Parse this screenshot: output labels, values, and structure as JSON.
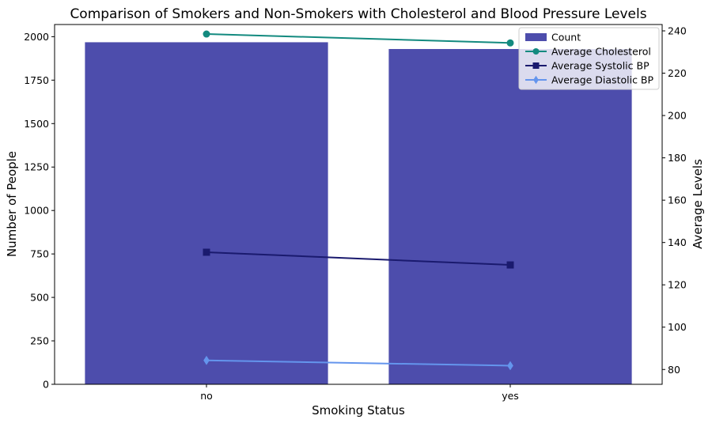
{
  "chart_data": {
    "type": "bar",
    "title": "Comparison of Smokers and Non-Smokers with Cholesterol and Blood Pressure Levels",
    "xlabel": "Smoking Status",
    "ylabel_left": "Number of People",
    "ylabel_right": "Average Levels",
    "categories": [
      "no",
      "yes"
    ],
    "ylim_left": [
      0,
      2070
    ],
    "ylim_right": [
      73,
      243
    ],
    "yticks_left": [
      0,
      250,
      500,
      750,
      1000,
      1250,
      1500,
      1750,
      2000
    ],
    "yticks_right": [
      80,
      100,
      120,
      140,
      160,
      180,
      200,
      220,
      240
    ],
    "legend_position": "top-right",
    "bar_series": {
      "name": "Count",
      "values": [
        1968,
        1929
      ],
      "color": "#2e2e9e"
    },
    "line_series": [
      {
        "name": "Average Cholesterol",
        "values": [
          238.5,
          234.3
        ],
        "color": "#138a7f",
        "marker": "circle"
      },
      {
        "name": "Average Systolic BP",
        "values": [
          135.4,
          129.4
        ],
        "color": "#1a1a6e",
        "marker": "square"
      },
      {
        "name": "Average Diastolic BP",
        "values": [
          84.3,
          81.8
        ],
        "color": "#6495ed",
        "marker": "diamond"
      }
    ]
  }
}
